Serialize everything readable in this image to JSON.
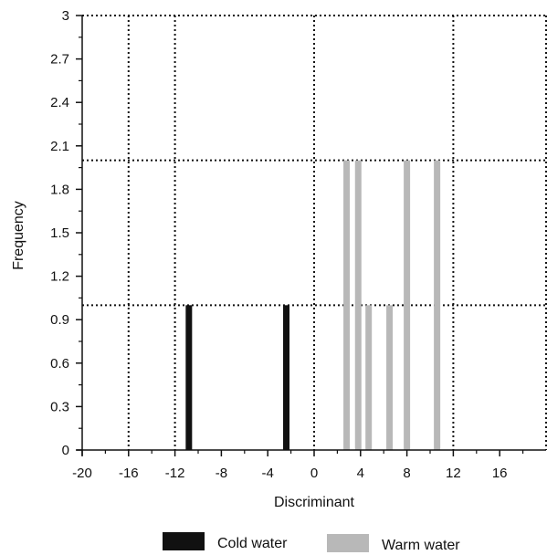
{
  "chart_data": {
    "type": "bar",
    "xlabel": "Discriminant",
    "ylabel": "Frequency",
    "xlim": [
      -20,
      20
    ],
    "ylim": [
      0,
      3
    ],
    "x_ticks": [
      "-20",
      "-16",
      "-12",
      "-8",
      "-4",
      "0",
      "4",
      "8",
      "12",
      "16"
    ],
    "y_ticks": [
      "0",
      "0.3",
      "0.6",
      "0.9",
      "1.2",
      "1.5",
      "1.8",
      "2.1",
      "2.4",
      "2.7",
      "3"
    ],
    "dotted_grid": {
      "vertical_x": [
        -16,
        -12,
        0,
        12,
        20
      ],
      "horizontal_y": [
        1,
        2,
        3
      ]
    },
    "legend": "bottom",
    "series": [
      {
        "name": "Cold water",
        "color": "#111111",
        "points": [
          {
            "x": -10.8,
            "y": 1
          },
          {
            "x": -2.4,
            "y": 1
          }
        ]
      },
      {
        "name": "Warm water",
        "color": "#b8b8b8",
        "points": [
          {
            "x": 2.8,
            "y": 2
          },
          {
            "x": 3.8,
            "y": 2
          },
          {
            "x": 4.7,
            "y": 1
          },
          {
            "x": 6.5,
            "y": 1
          },
          {
            "x": 8.0,
            "y": 2
          },
          {
            "x": 10.6,
            "y": 2
          }
        ]
      }
    ]
  }
}
